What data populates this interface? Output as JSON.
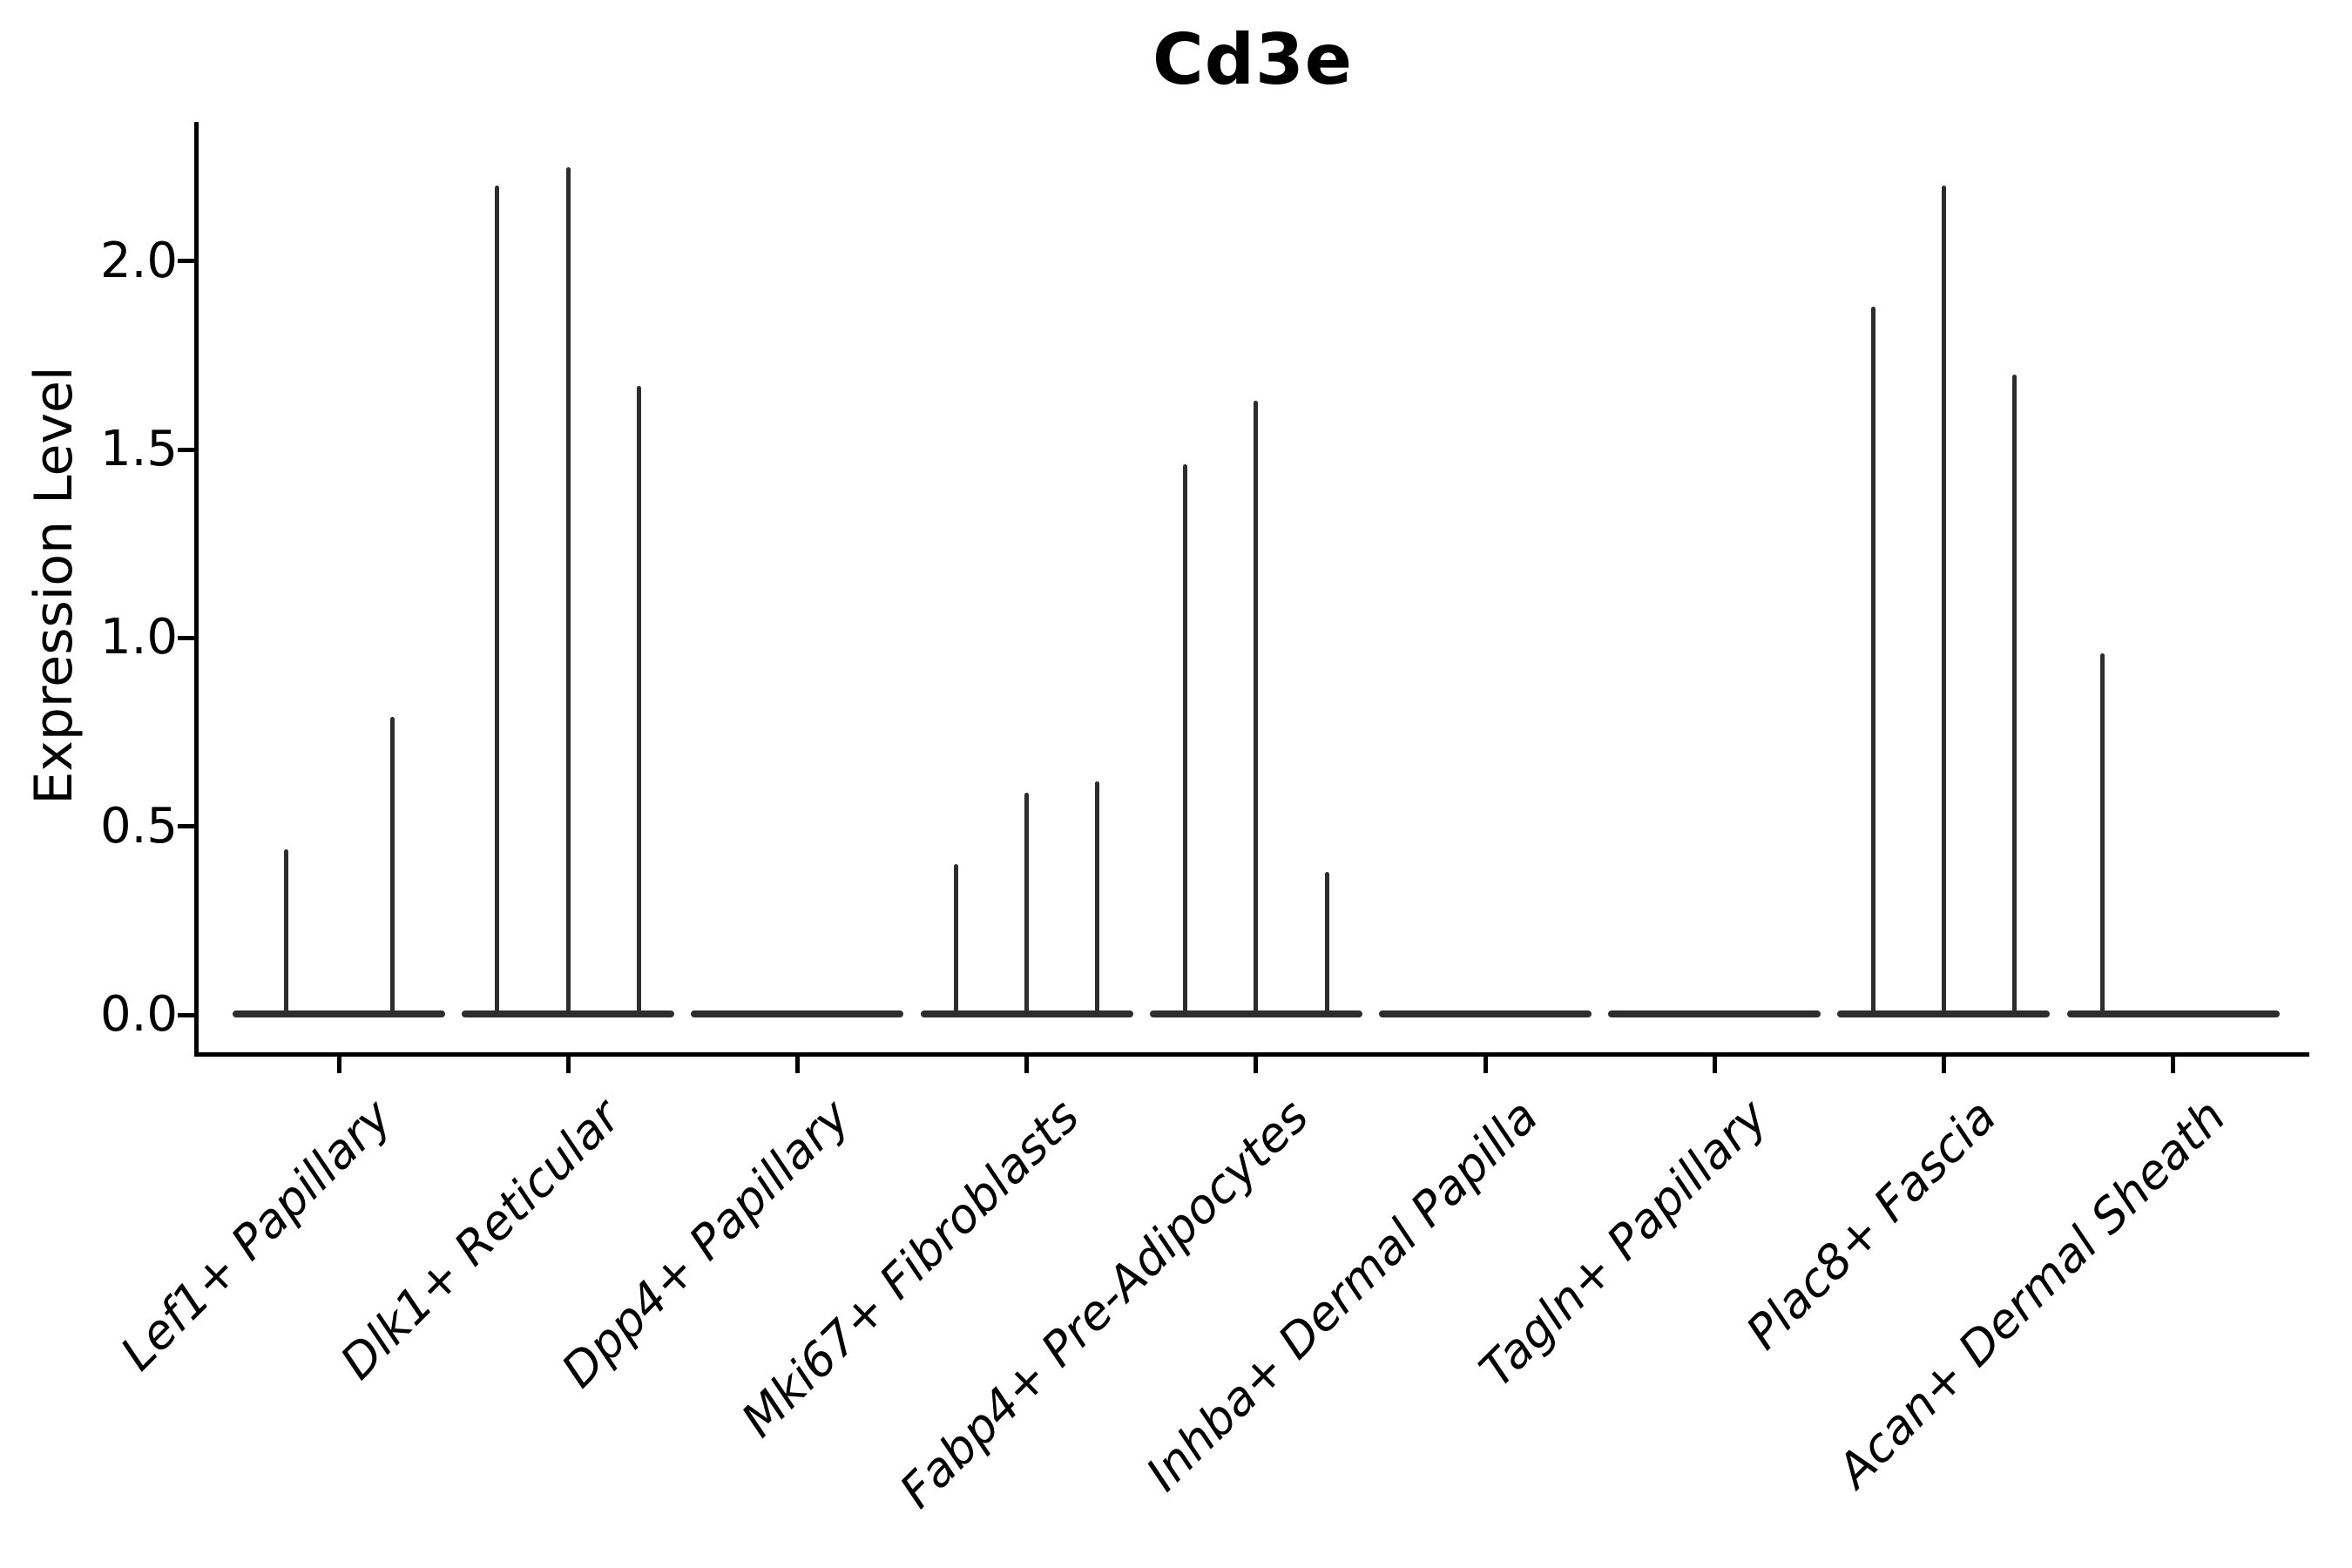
{
  "chart_data": {
    "type": "violin",
    "title": "Cd3e",
    "xlabel": "",
    "ylabel": "Expression Level",
    "ytick_labels": [
      "0.0",
      "0.5",
      "1.0",
      "1.5",
      "2.0"
    ],
    "ytick_values": [
      0.0,
      0.5,
      1.0,
      1.5,
      2.0
    ],
    "ylim": [
      -0.1,
      2.37
    ],
    "grid": false,
    "legend": "none",
    "violin_color": "#2d2d2d",
    "axis_color": "#000000",
    "categories": [
      "Lef1+ Papillary",
      "Dlk1+ Reticular",
      "Dpp4+ Papillary",
      "Mki67+ Fibroblasts",
      "Fabp4+ Pre-Adipocytes",
      "Inhba+ Dermal Papilla",
      "Tagln+ Papillary",
      "Plac8+ Fascia",
      "Acan+ Dermal Sheath"
    ],
    "groups": [
      {
        "category": "Lef1+ Papillary",
        "violins": 2,
        "spike_peaks": [
          {
            "slot": 0,
            "value": 0.44
          },
          {
            "slot": 1,
            "value": 0.79
          }
        ]
      },
      {
        "category": "Dlk1+ Reticular",
        "violins": 3,
        "spike_peaks": [
          {
            "slot": 0,
            "value": 2.2
          },
          {
            "slot": 1,
            "value": 2.25
          },
          {
            "slot": 2,
            "value": 1.67
          }
        ]
      },
      {
        "category": "Dpp4+ Papillary",
        "violins": 3,
        "spike_peaks": []
      },
      {
        "category": "Mki67+ Fibroblasts",
        "violins": 3,
        "spike_peaks": [
          {
            "slot": 0,
            "value": 0.4
          },
          {
            "slot": 1,
            "value": 0.59
          },
          {
            "slot": 2,
            "value": 0.62
          }
        ]
      },
      {
        "category": "Fabp4+ Pre-Adipocytes",
        "violins": 3,
        "spike_peaks": [
          {
            "slot": 0,
            "value": 1.46
          },
          {
            "slot": 1,
            "value": 1.63
          },
          {
            "slot": 2,
            "value": 0.38
          }
        ]
      },
      {
        "category": "Inhba+ Dermal Papilla",
        "violins": 3,
        "spike_peaks": []
      },
      {
        "category": "Tagln+ Papillary",
        "violins": 3,
        "spike_peaks": []
      },
      {
        "category": "Plac8+ Fascia",
        "violins": 3,
        "spike_peaks": [
          {
            "slot": 0,
            "value": 1.88
          },
          {
            "slot": 1,
            "value": 2.2
          },
          {
            "slot": 2,
            "value": 1.7
          }
        ]
      },
      {
        "category": "Acan+ Dermal Sheath",
        "violins": 3,
        "spike_peaks": [
          {
            "slot": 0,
            "value": 0.96
          }
        ]
      }
    ]
  }
}
